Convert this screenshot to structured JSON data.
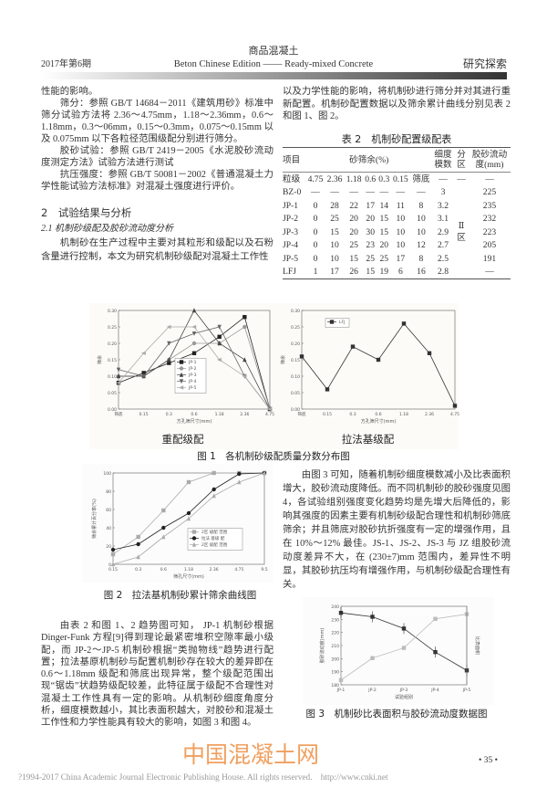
{
  "header": {
    "journal_cn": "商品混凝土",
    "issue": "2017年第6期",
    "journal_en": "Beton Chinese Edition —— Ready-mixed Concrete",
    "section": "研究探索"
  },
  "left_col": {
    "p0": "性能的影响。",
    "p1": "筛分：参照 GB/T 14684－2011《建筑用砂》标准中筛分试验方法将 2.36～4.75mm，1.18～2.36mm，0.6～1.18mm，0.3～06mm，0.15～0.3mm，0.075～0.15mm 以及 0.075mm 以下各粒径范围级配分别进行筛分。",
    "p2": "胶砂试验：参照 GB/T 2419－2005《水泥胶砂流动度测定方法》试验方法进行测试",
    "p3": "抗压强度：参照 GB/T 50081－2002《普通混凝土力学性能试验方法标准》对混凝土强度进行评价。",
    "h2": "2　试验结果与分析",
    "h21": "2.1  机制砂级配及胶砂流动度分析",
    "p4": "机制砂在生产过程中主要对其粒形和级配以及石粉含量进行控制，本文为研究机制砂级配对混凝土工作性",
    "p5": "由表 2 和图 1、2 趋势图可知， JP-1 机制砂根据 Dinger-Funk 方程[9]得到理论最紧密堆积空隙率最小级配，而 JP-2～JP-5 机制砂根据“类抛物线”趋势进行配置；拉法基原机制砂与配置机制砂存在较大的差异即在 0.6～1.18mm 级配和筛底出现异常，整个级配范围出现“锯齿”状趋势级配较差，此特征属于级配不合理性对混凝土工作性具有一定的影响。从机制砂细度角度分析，细度模数越小，其比表面积越大，对胶砂和混凝土工作性和力学性能具有较大的影响，如图 3 和图 4。"
  },
  "right_col": {
    "p1": "以及力学性能的影响，将机制砂进行筛分并对其进行重新配置。机制砂配置数据以及筛余累计曲线分别见表 2 和图 1、图 2。",
    "p2": "由图 3 可知，随着机制砂细度模数减小及比表面积增大，胶砂流动度降低。而不同机制砂的胶砂强度见图 4，各试验组别强度变化趋势均是先增大后降低的，影响其强度的因素主要有机制砂级配合理性和机制砂筛底筛余；并且筛底对胶砂抗折强度有一定的增强作用，且在 10%～12% 最佳。JS-1、JS-2、JS-3 与 JZ 组胶砂流动度差异不大，在 (230±7)mm 范围内，差异性不明显，其胶砂抗压均有增强作用，与机制砂级配合理性有关。"
  },
  "table2": {
    "title": "表 2　机制砂配置级配表",
    "headers": {
      "item": "项目",
      "residue": "砂筛余(%)",
      "fineness": "细度模数",
      "zone": "分区",
      "flow": "胶砂流动度(mm)"
    },
    "grade_row": [
      "粒级",
      "4.75",
      "2.36",
      "1.18",
      "0.6",
      "0.3",
      "0.15",
      "筛底",
      "—",
      "—",
      "—"
    ],
    "rows": [
      [
        "BZ-0",
        "—",
        "—",
        "—",
        "—",
        "—",
        "—",
        "—",
        "3",
        "",
        "225"
      ],
      [
        "JP-1",
        "0",
        "28",
        "22",
        "17",
        "14",
        "11",
        "8",
        "3.2",
        "",
        "235"
      ],
      [
        "JP-2",
        "0",
        "25",
        "20",
        "20",
        "15",
        "10",
        "10",
        "3.1",
        "",
        "232"
      ],
      [
        "JP-3",
        "0",
        "15",
        "20",
        "30",
        "15",
        "10",
        "10",
        "2.9",
        "Ⅱ区",
        "223"
      ],
      [
        "JP-4",
        "0",
        "10",
        "25",
        "23",
        "20",
        "10",
        "12",
        "2.7",
        "",
        "205"
      ],
      [
        "JP-5",
        "0",
        "10",
        "15",
        "25",
        "25",
        "17",
        "8",
        "2.5",
        "",
        "191"
      ],
      [
        "LFJ",
        "1",
        "17",
        "26",
        "15",
        "19",
        "6",
        "16",
        "2.8",
        "",
        "—"
      ]
    ]
  },
  "chart_data": [
    {
      "type": "line",
      "subtitle": "重配级配",
      "xlabel": "方孔筛尺寸(mm)",
      "ylabel": "筛余",
      "categories": [
        "筛底",
        "0.15",
        "0.3",
        "0.6",
        "1.18",
        "2.36",
        "4.75"
      ],
      "ylim": [
        0,
        0.3
      ],
      "yticks": [
        "0.00",
        "0.05",
        "0.10",
        "0.15",
        "0.20",
        "0.25",
        "0.30"
      ],
      "legend": "center",
      "series": [
        {
          "name": "JP-1",
          "marker": "square",
          "color": "#222222",
          "values": [
            0.08,
            0.11,
            0.14,
            0.17,
            0.22,
            0.28,
            0
          ]
        },
        {
          "name": "JP-2",
          "marker": "circle",
          "color": "#999999",
          "values": [
            0.1,
            0.1,
            0.15,
            0.2,
            0.2,
            0.25,
            0
          ]
        },
        {
          "name": "JP-3",
          "marker": "triangle-up",
          "color": "#444444",
          "values": [
            0.1,
            0.1,
            0.15,
            0.3,
            0.2,
            0.15,
            0
          ]
        },
        {
          "name": "JP-4",
          "marker": "triangle-down",
          "color": "#666666",
          "values": [
            0.12,
            0.1,
            0.2,
            0.23,
            0.25,
            0.1,
            0
          ]
        },
        {
          "name": "JP-5",
          "marker": "triangle-left",
          "color": "#aaaaaa",
          "values": [
            0.08,
            0.17,
            0.25,
            0.25,
            0.15,
            0.1,
            0
          ]
        }
      ]
    },
    {
      "type": "line",
      "subtitle": "拉法基级配",
      "xlabel": "方孔筛尺寸(mm)",
      "ylabel": "筛余",
      "categories": [
        "筛底",
        "0.15",
        "0.3",
        "0.6",
        "1.18",
        "2.36",
        "4.75"
      ],
      "ylim": [
        0,
        0.3
      ],
      "yticks": [
        "0.00",
        "0.05",
        "0.10",
        "0.15",
        "0.20",
        "0.25",
        "0.30"
      ],
      "legend": "top-left",
      "series": [
        {
          "name": "LFJ",
          "marker": "square",
          "color": "#333333",
          "values": [
            0.16,
            0.06,
            0.19,
            0.15,
            0.26,
            0.17,
            0.01
          ]
        }
      ]
    },
    {
      "type": "line",
      "title": "图 2　拉法基机制砂累计筛余曲线图",
      "xlabel": "筛孔尺寸(mm)",
      "ylabel": "筛余累计百分率(%)",
      "categories": [
        "0.15",
        "0.3",
        "0.6",
        "1.18",
        "2.36",
        "4.75",
        "9.5"
      ],
      "ylim": [
        100,
        0
      ],
      "yticks": [
        "0",
        "20",
        "40",
        "60",
        "80",
        "100"
      ],
      "legend": "center-right",
      "series": [
        {
          "name": "2区 级配 范围",
          "marker": "square",
          "color": "#aaaaaa",
          "values": [
            89,
            70,
            41,
            10,
            0,
            0,
            0
          ]
        },
        {
          "name": "拉法 基级 配",
          "marker": "circle",
          "color": "#222222",
          "values": [
            84,
            78,
            60,
            44,
            18,
            1,
            0
          ]
        },
        {
          "name": "2区 级配 范围",
          "marker": "triangle-up",
          "color": "#aaaaaa",
          "values": [
            100,
            92,
            70,
            50,
            25,
            10,
            0
          ]
        }
      ]
    },
    {
      "type": "line",
      "title": "图 3　机制砂比表面积与胶砂流动度数据图",
      "xlabel": "试验组别",
      "ylabel": "胶砂流动度(mm)",
      "y2label": "比表面积",
      "categories": [
        "JP-1",
        "JP-2",
        "JP-3",
        "JP-4",
        "JP-5"
      ],
      "ylim": [
        180,
        240
      ],
      "yticks": [
        "180",
        "190",
        "200",
        "210",
        "220",
        "230",
        "240"
      ],
      "series": [
        {
          "name": "胶砂流动度",
          "axis": "left",
          "color": "#333333",
          "values": [
            235,
            232,
            223,
            205,
            191
          ],
          "error_bars": true
        },
        {
          "name": "比表面积",
          "axis": "right",
          "color": "#bbbbbb",
          "values": [
            0.06,
            0.34,
            0.47,
            0.84,
            0.9
          ]
        }
      ]
    }
  ],
  "fig1_caption": "图 1　各机制砂级配质量分数分布图",
  "footer": {
    "watermark": "中国混凝土网",
    "page": "• 35 •",
    "copyright": "?1994-2017 China Academic Journal Electronic Publishing House. All rights reserved.    http://www.cnki.net",
    "watermark_color": "#f0a060"
  }
}
